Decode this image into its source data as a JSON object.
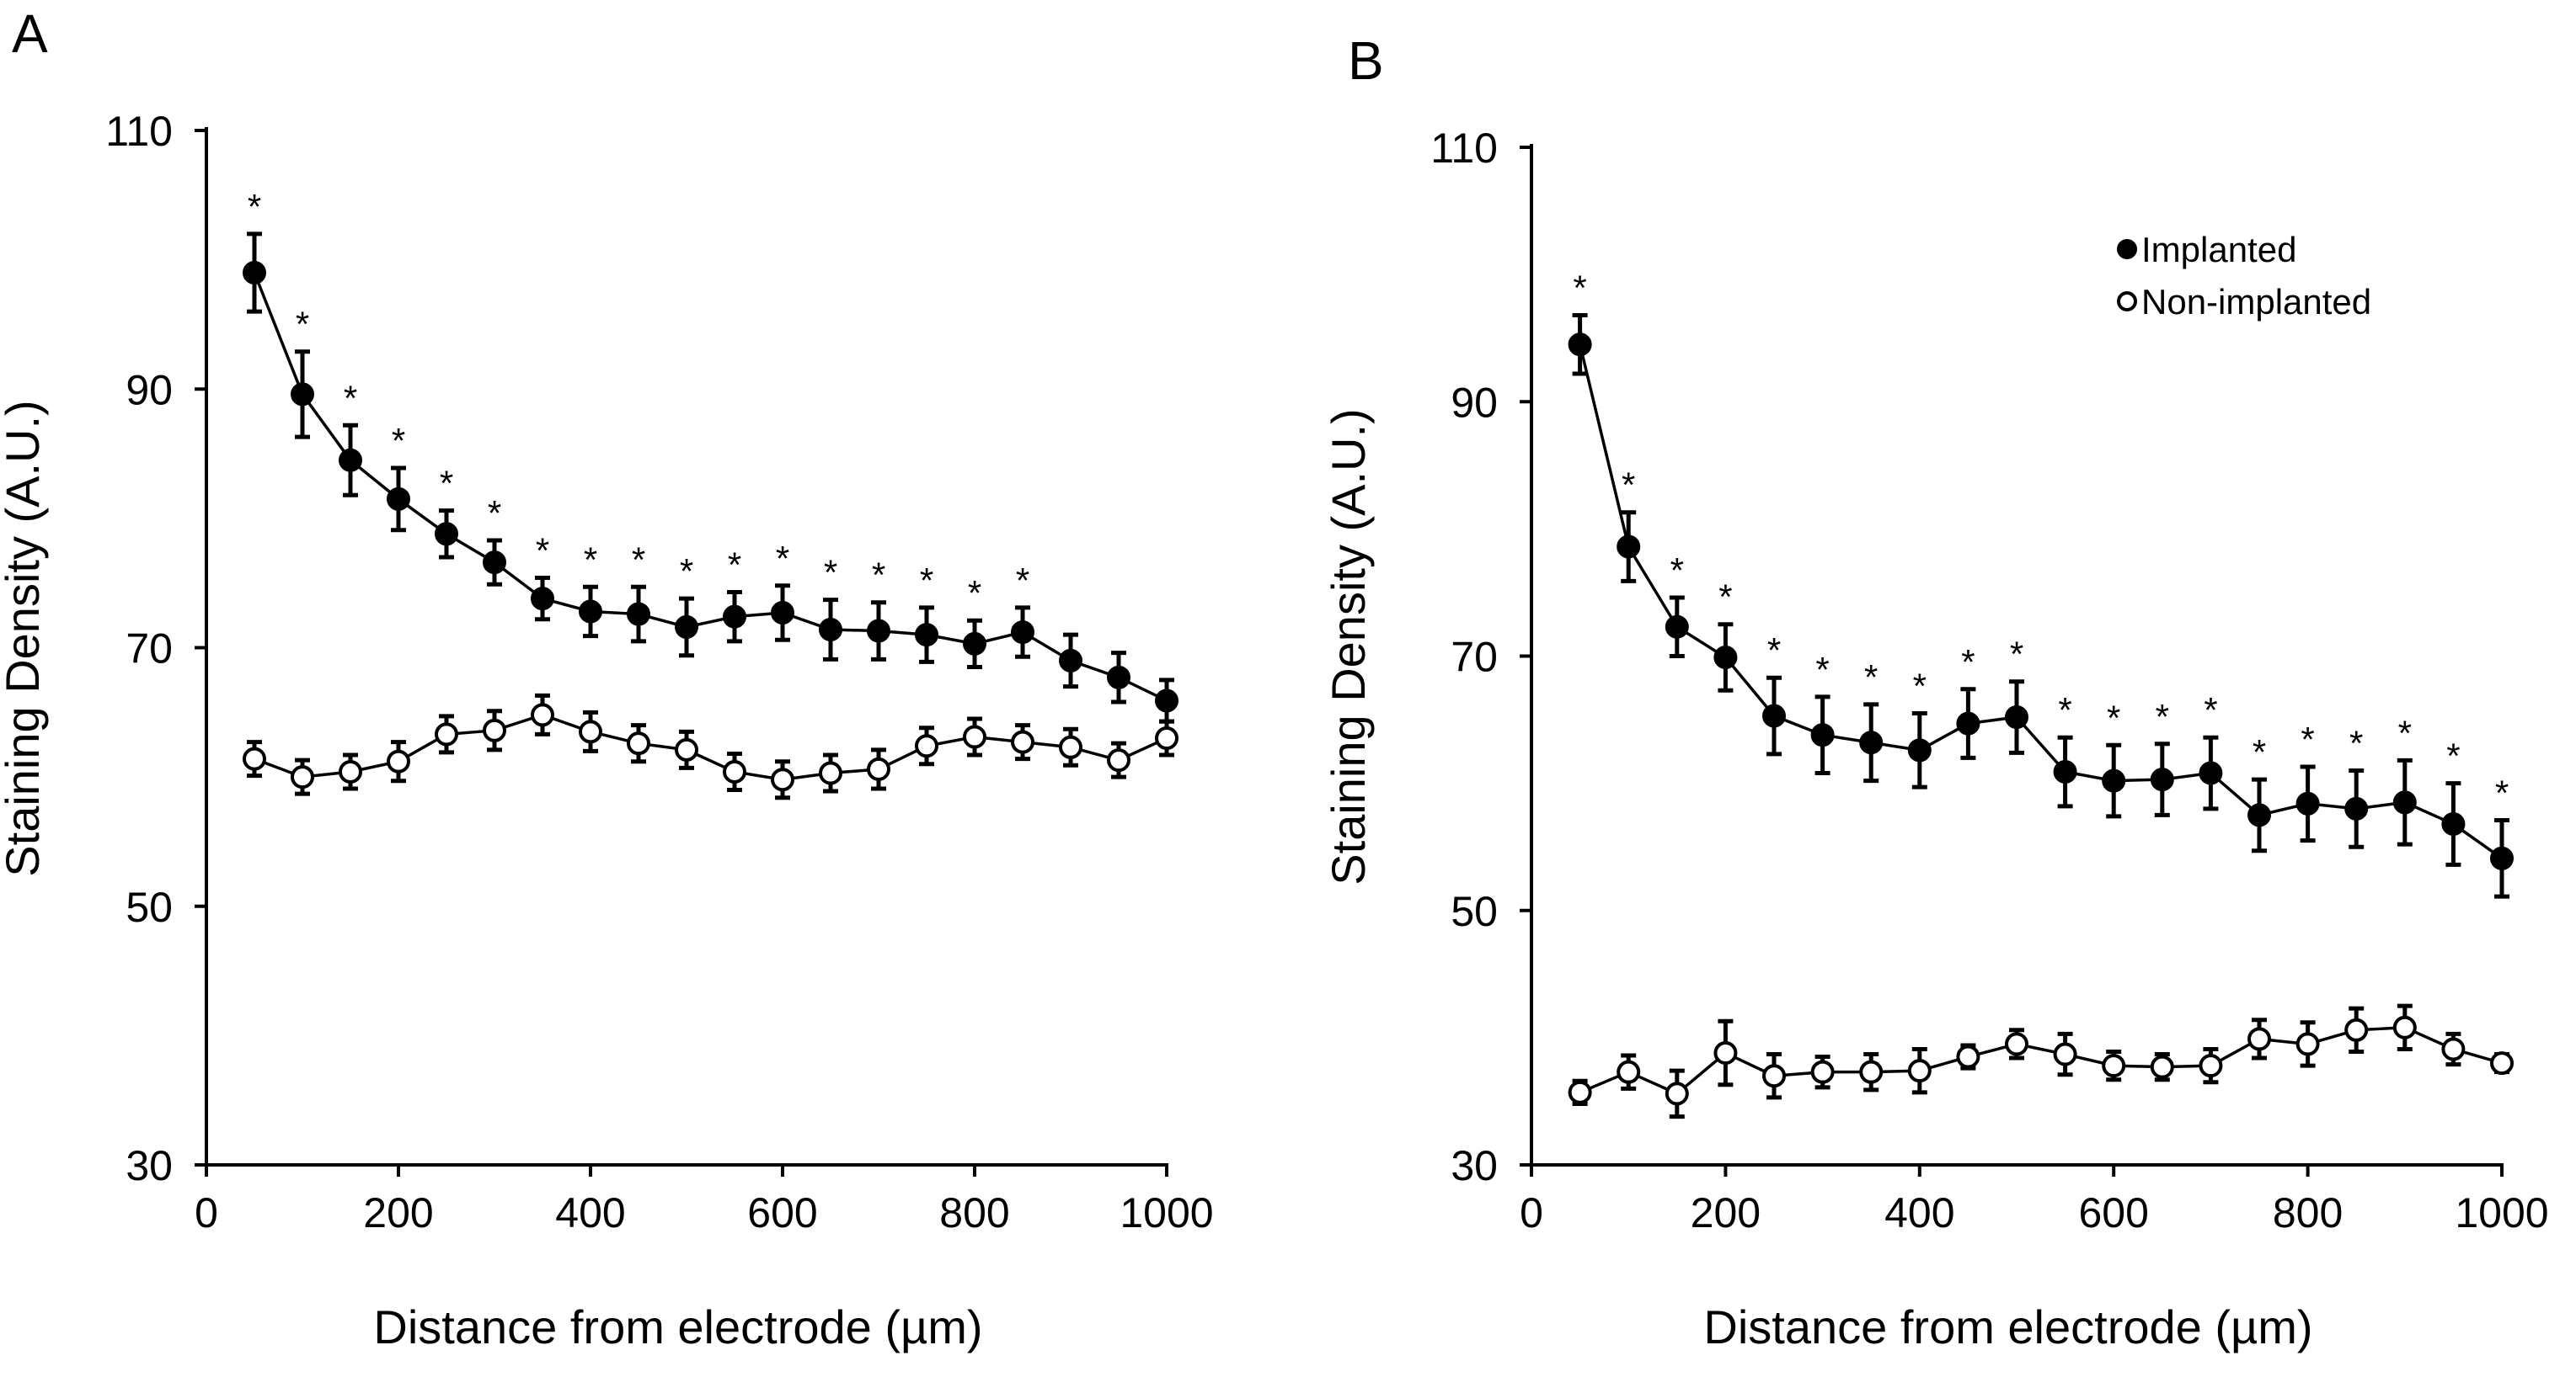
{
  "legend": {
    "items": [
      {
        "label": "Implanted",
        "marker": "filled"
      },
      {
        "label": "Non-implanted",
        "marker": "open"
      }
    ]
  },
  "colors": {
    "ink": "#000000",
    "background": "#ffffff"
  },
  "chart_data": [
    {
      "panel": "A",
      "type": "line",
      "xlabel": "Distance from electrode (µm)",
      "ylabel": "Staining Density (A.U.)",
      "xlim": [
        0,
        1000
      ],
      "ylim": [
        30,
        110
      ],
      "x_ticks": [
        0,
        200,
        400,
        600,
        800,
        1000
      ],
      "y_ticks": [
        30,
        50,
        70,
        90,
        110
      ],
      "x": [
        50,
        100,
        150,
        200,
        250,
        300,
        350,
        400,
        450,
        500,
        550,
        600,
        650,
        700,
        750,
        800,
        850,
        900,
        950,
        1000
      ],
      "series": [
        {
          "name": "Implanted",
          "marker": "filled",
          "values": [
            99.0,
            89.6,
            84.5,
            81.5,
            78.8,
            76.6,
            73.8,
            72.8,
            72.6,
            71.6,
            72.4,
            72.7,
            71.4,
            71.3,
            71.0,
            70.3,
            71.2,
            69.0,
            67.7,
            65.9
          ],
          "errors": [
            3.0,
            3.3,
            2.7,
            2.4,
            1.8,
            1.7,
            1.6,
            1.9,
            2.1,
            2.2,
            1.9,
            2.1,
            2.3,
            2.2,
            2.1,
            1.8,
            1.9,
            2.0,
            1.9,
            1.6
          ],
          "significant": [
            "*",
            "*",
            "*",
            "*",
            "*",
            "*",
            "*",
            "*",
            "*",
            "*",
            "*",
            "*",
            "*",
            "*",
            "*",
            "*",
            "*",
            "",
            "",
            ""
          ]
        },
        {
          "name": "Non-implanted",
          "marker": "open",
          "values": [
            61.4,
            60.0,
            60.4,
            61.2,
            63.3,
            63.6,
            64.8,
            63.5,
            62.6,
            62.1,
            60.4,
            59.8,
            60.3,
            60.6,
            62.4,
            63.1,
            62.7,
            62.3,
            61.3,
            63.0
          ],
          "errors": [
            1.3,
            1.3,
            1.3,
            1.5,
            1.4,
            1.5,
            1.5,
            1.5,
            1.4,
            1.4,
            1.4,
            1.4,
            1.4,
            1.5,
            1.4,
            1.4,
            1.3,
            1.4,
            1.3,
            1.3
          ]
        }
      ]
    },
    {
      "panel": "B",
      "type": "line",
      "xlabel": "Distance from electrode (µm)",
      "ylabel": "Staining Density (A.U.)",
      "xlim": [
        0,
        1000
      ],
      "ylim": [
        30,
        110
      ],
      "x_ticks": [
        0,
        200,
        400,
        600,
        800,
        1000
      ],
      "y_ticks": [
        30,
        50,
        70,
        90,
        110
      ],
      "x": [
        50,
        100,
        150,
        200,
        250,
        300,
        350,
        400,
        450,
        500,
        550,
        600,
        650,
        700,
        750,
        800,
        850,
        900,
        950,
        1000
      ],
      "series": [
        {
          "name": "Implanted",
          "marker": "filled",
          "values": [
            94.5,
            78.6,
            72.3,
            69.9,
            65.3,
            63.8,
            63.2,
            62.6,
            64.7,
            65.2,
            60.9,
            60.2,
            60.3,
            60.8,
            57.5,
            58.4,
            58.0,
            58.5,
            56.8,
            54.1
          ],
          "errors": [
            2.3,
            2.7,
            2.3,
            2.6,
            3.0,
            3.0,
            3.0,
            2.9,
            2.7,
            2.8,
            2.7,
            2.8,
            2.8,
            2.8,
            2.8,
            2.9,
            3.0,
            3.3,
            3.2,
            3.0
          ],
          "significant": [
            "*",
            "*",
            "*",
            "*",
            "*",
            "*",
            "*",
            "*",
            "*",
            "*",
            "*",
            "*",
            "*",
            "*",
            "*",
            "*",
            "*",
            "*",
            "*",
            "*"
          ]
        },
        {
          "name": "Non-implanted",
          "marker": "open",
          "values": [
            35.7,
            37.3,
            35.6,
            38.8,
            37.0,
            37.3,
            37.3,
            37.4,
            38.5,
            39.5,
            38.7,
            37.8,
            37.7,
            37.8,
            39.9,
            39.5,
            40.6,
            40.8,
            39.1,
            38.0
          ],
          "errors": [
            0.9,
            1.3,
            1.8,
            2.5,
            1.7,
            1.2,
            1.4,
            1.7,
            0.9,
            1.1,
            1.6,
            1.1,
            1.0,
            1.3,
            1.5,
            1.7,
            1.7,
            1.7,
            1.2,
            0.7
          ]
        }
      ]
    }
  ]
}
